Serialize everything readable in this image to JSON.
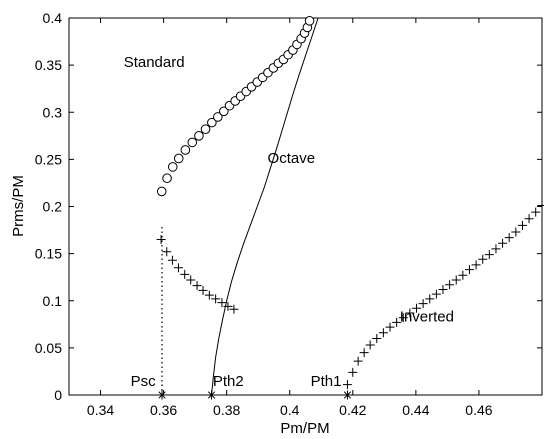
{
  "chart_data": {
    "type": "scatter",
    "xlabel": "Pm/PM",
    "ylabel": "Prms/PM",
    "xlim": [
      0.33,
      0.48
    ],
    "ylim": [
      0,
      0.4
    ],
    "xticks": [
      "0.34",
      "0.36",
      "0.38",
      "0.4",
      "0.42",
      "0.44",
      "0.46"
    ],
    "yticks": [
      "0",
      "0.05",
      "0.1",
      "0.15",
      "0.2",
      "0.25",
      "0.3",
      "0.35",
      "0.4"
    ],
    "grid": false,
    "legend": "none",
    "box": "full",
    "annotations": [
      {
        "text": "Standard",
        "x": 0.357,
        "y": 0.348
      },
      {
        "text": "Octave",
        "x": 0.4005,
        "y": 0.246
      },
      {
        "text": "Inverted",
        "x": 0.4435,
        "y": 0.078
      },
      {
        "text": "Psc",
        "x": 0.3535,
        "y": 0.0095
      },
      {
        "text": "Pth2",
        "x": 0.3805,
        "y": 0.0095
      },
      {
        "text": "Pth1",
        "x": 0.4115,
        "y": 0.0095
      }
    ],
    "series": [
      {
        "marker": "circle",
        "points": [
          [
            0.3594,
            0.216
          ],
          [
            0.3611,
            0.23
          ],
          [
            0.3629,
            0.242
          ],
          [
            0.3648,
            0.251
          ],
          [
            0.3669,
            0.26
          ],
          [
            0.3691,
            0.268
          ],
          [
            0.3712,
            0.275
          ],
          [
            0.3733,
            0.282
          ],
          [
            0.3753,
            0.289
          ],
          [
            0.3772,
            0.295
          ],
          [
            0.3791,
            0.301
          ],
          [
            0.3809,
            0.307
          ],
          [
            0.3827,
            0.312
          ],
          [
            0.3844,
            0.317
          ],
          [
            0.3862,
            0.322
          ],
          [
            0.3879,
            0.327
          ],
          [
            0.3897,
            0.332
          ],
          [
            0.3914,
            0.337
          ],
          [
            0.3931,
            0.342
          ],
          [
            0.3948,
            0.347
          ],
          [
            0.3964,
            0.352
          ],
          [
            0.398,
            0.356
          ],
          [
            0.3995,
            0.361
          ],
          [
            0.401,
            0.366
          ],
          [
            0.4023,
            0.372
          ],
          [
            0.4036,
            0.378
          ],
          [
            0.4047,
            0.384
          ],
          [
            0.4056,
            0.39
          ],
          [
            0.4063,
            0.397
          ]
        ]
      },
      {
        "marker": "plus",
        "points": [
          [
            0.3592,
            0.165
          ],
          [
            0.361,
            0.152
          ],
          [
            0.3628,
            0.143
          ],
          [
            0.3647,
            0.135
          ],
          [
            0.3667,
            0.128
          ],
          [
            0.3686,
            0.122
          ],
          [
            0.3706,
            0.116
          ],
          [
            0.3725,
            0.111
          ],
          [
            0.3745,
            0.106
          ],
          [
            0.3765,
            0.102
          ],
          [
            0.3785,
            0.098
          ],
          [
            0.3804,
            0.094
          ],
          [
            0.3823,
            0.091
          ]
        ]
      },
      {
        "marker": "plus",
        "points": [
          [
            0.4183,
            0.011
          ],
          [
            0.42,
            0.024
          ],
          [
            0.4217,
            0.036
          ],
          [
            0.4236,
            0.045
          ],
          [
            0.4255,
            0.053
          ],
          [
            0.4276,
            0.06
          ],
          [
            0.4297,
            0.066
          ],
          [
            0.4318,
            0.072
          ],
          [
            0.4339,
            0.077
          ],
          [
            0.436,
            0.082
          ],
          [
            0.4381,
            0.087
          ],
          [
            0.4402,
            0.092
          ],
          [
            0.4423,
            0.097
          ],
          [
            0.4444,
            0.102
          ],
          [
            0.4465,
            0.107
          ],
          [
            0.4486,
            0.112
          ],
          [
            0.4507,
            0.117
          ],
          [
            0.4528,
            0.122
          ],
          [
            0.4549,
            0.127
          ],
          [
            0.457,
            0.133
          ],
          [
            0.4591,
            0.138
          ],
          [
            0.4612,
            0.144
          ],
          [
            0.4633,
            0.149
          ],
          [
            0.4654,
            0.155
          ],
          [
            0.4675,
            0.161
          ],
          [
            0.4696,
            0.167
          ],
          [
            0.4717,
            0.173
          ],
          [
            0.4738,
            0.18
          ],
          [
            0.4759,
            0.187
          ],
          [
            0.478,
            0.194
          ],
          [
            0.48,
            0.201
          ]
        ]
      },
      {
        "marker": "line",
        "points": [
          [
            0.3752,
            0.0
          ],
          [
            0.3758,
            0.02
          ],
          [
            0.3765,
            0.04
          ],
          [
            0.3775,
            0.06
          ],
          [
            0.3787,
            0.08
          ],
          [
            0.38,
            0.1
          ],
          [
            0.3815,
            0.12
          ],
          [
            0.3833,
            0.14
          ],
          [
            0.3853,
            0.16
          ],
          [
            0.3875,
            0.18
          ],
          [
            0.3897,
            0.2
          ],
          [
            0.3919,
            0.22
          ],
          [
            0.3938,
            0.24
          ],
          [
            0.3957,
            0.26
          ],
          [
            0.3975,
            0.28
          ],
          [
            0.3993,
            0.3
          ],
          [
            0.4011,
            0.32
          ],
          [
            0.403,
            0.34
          ],
          [
            0.405,
            0.36
          ],
          [
            0.407,
            0.38
          ],
          [
            0.409,
            0.4
          ]
        ]
      },
      {
        "marker": "dotted",
        "points": [
          [
            0.3595,
            0.0
          ],
          [
            0.3595,
            0.18
          ]
        ]
      },
      {
        "marker": "star",
        "points": [
          [
            0.3595,
            0.0
          ],
          [
            0.3752,
            0.0
          ],
          [
            0.4183,
            0.0
          ]
        ]
      }
    ]
  }
}
